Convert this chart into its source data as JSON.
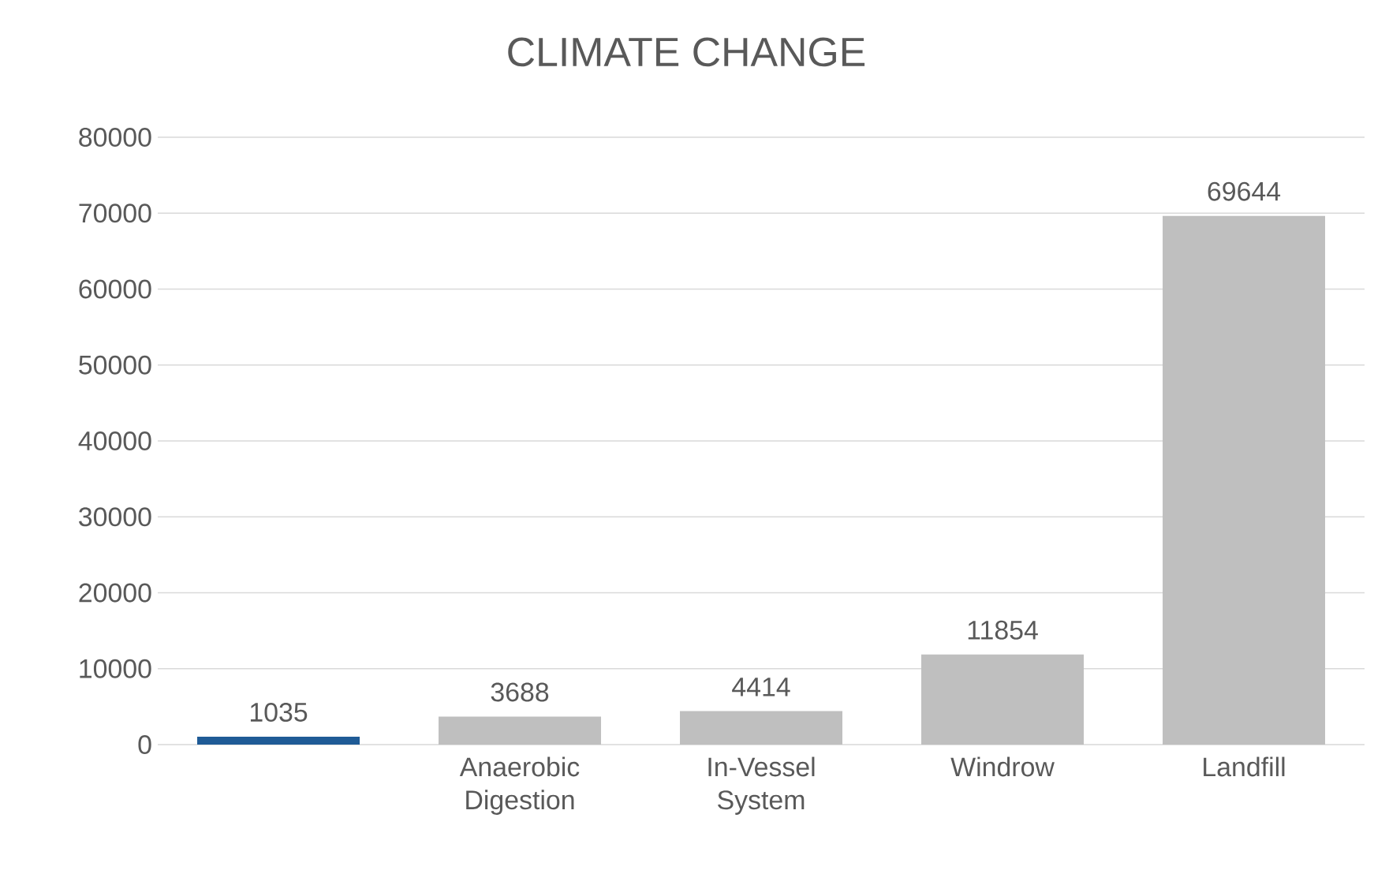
{
  "chart_data": {
    "type": "bar",
    "title": "CLIMATE CHANGE",
    "categories": [
      null,
      "Anaerobic Digestion",
      "In-Vessel System",
      "Windrow",
      "Landfill"
    ],
    "values": [
      1035,
      3688,
      4414,
      11854,
      69644
    ],
    "colors": [
      "#1f5b96",
      "#bfbfbf",
      "#bfbfbf",
      "#bfbfbf",
      "#bfbfbf"
    ],
    "ylim": [
      0,
      80000
    ],
    "yticks": [
      0,
      10000,
      20000,
      30000,
      40000,
      50000,
      60000,
      70000,
      80000
    ],
    "grid": "y",
    "data_labels": true
  }
}
